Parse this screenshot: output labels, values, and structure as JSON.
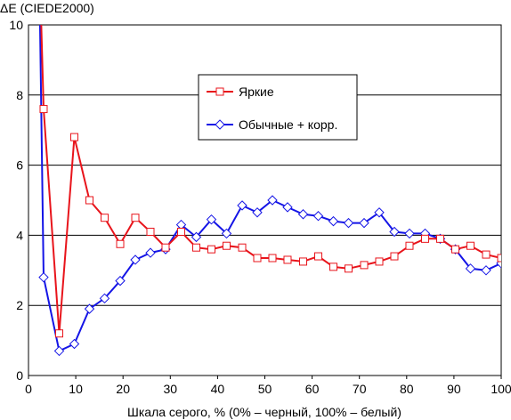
{
  "chart_data": {
    "type": "line",
    "title": "",
    "ylabel": "ΔE (CIEDE2000)",
    "xlabel": "Шкала серого, % (0% – черный, 100% – белый)",
    "xlim": [
      0,
      100
    ],
    "ylim": [
      0,
      10
    ],
    "x_ticks": [
      0,
      10,
      20,
      30,
      40,
      50,
      60,
      70,
      80,
      90,
      100
    ],
    "y_ticks": [
      0,
      2,
      4,
      6,
      8,
      10
    ],
    "grid": "horizontal",
    "legend_position": "upper-center",
    "series": [
      {
        "name": "Яркие",
        "color": "#e8141b",
        "marker": "square",
        "points": [
          [
            2.6,
            10.5
          ],
          [
            3.2,
            7.6
          ],
          [
            6.5,
            1.2
          ],
          [
            9.7,
            6.8
          ],
          [
            12.9,
            5.0
          ],
          [
            16.1,
            4.5
          ],
          [
            19.4,
            3.75
          ],
          [
            22.6,
            4.5
          ],
          [
            25.8,
            4.1
          ],
          [
            29.0,
            3.65
          ],
          [
            32.3,
            4.1
          ],
          [
            35.5,
            3.65
          ],
          [
            38.7,
            3.6
          ],
          [
            41.9,
            3.7
          ],
          [
            45.2,
            3.65
          ],
          [
            48.4,
            3.35
          ],
          [
            51.6,
            3.35
          ],
          [
            54.8,
            3.3
          ],
          [
            58.1,
            3.25
          ],
          [
            61.3,
            3.4
          ],
          [
            64.5,
            3.1
          ],
          [
            67.7,
            3.05
          ],
          [
            71.0,
            3.15
          ],
          [
            74.2,
            3.25
          ],
          [
            77.4,
            3.4
          ],
          [
            80.6,
            3.7
          ],
          [
            83.9,
            3.9
          ],
          [
            87.1,
            3.9
          ],
          [
            90.3,
            3.6
          ],
          [
            93.5,
            3.7
          ],
          [
            96.8,
            3.45
          ],
          [
            100,
            3.35
          ]
        ]
      },
      {
        "name": "Обычные + корр.",
        "color": "#1414e6",
        "marker": "diamond",
        "points": [
          [
            2.4,
            10.5
          ],
          [
            3.2,
            2.8
          ],
          [
            6.5,
            0.7
          ],
          [
            9.7,
            0.9
          ],
          [
            12.9,
            1.9
          ],
          [
            16.1,
            2.2
          ],
          [
            19.4,
            2.7
          ],
          [
            22.6,
            3.3
          ],
          [
            25.8,
            3.5
          ],
          [
            29.0,
            3.6
          ],
          [
            32.3,
            4.3
          ],
          [
            35.5,
            3.95
          ],
          [
            38.7,
            4.45
          ],
          [
            41.9,
            4.05
          ],
          [
            45.2,
            4.85
          ],
          [
            48.4,
            4.65
          ],
          [
            51.6,
            5.0
          ],
          [
            54.8,
            4.8
          ],
          [
            58.1,
            4.6
          ],
          [
            61.3,
            4.55
          ],
          [
            64.5,
            4.4
          ],
          [
            67.7,
            4.35
          ],
          [
            71.0,
            4.35
          ],
          [
            74.2,
            4.65
          ],
          [
            77.4,
            4.1
          ],
          [
            80.6,
            4.05
          ],
          [
            83.9,
            4.05
          ],
          [
            87.1,
            3.9
          ],
          [
            90.3,
            3.6
          ],
          [
            93.5,
            3.05
          ],
          [
            96.8,
            3.0
          ],
          [
            100,
            3.2
          ]
        ]
      }
    ]
  }
}
